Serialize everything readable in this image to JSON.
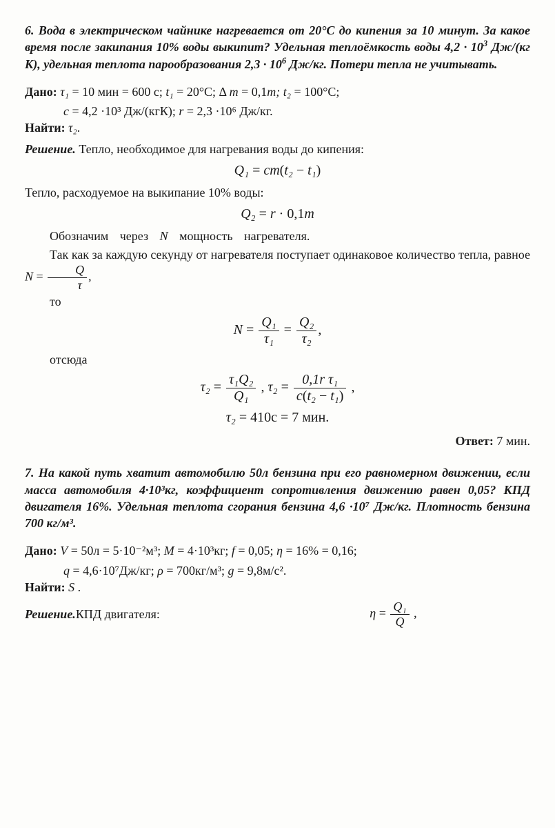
{
  "problem6": {
    "title_a": "6. Вода в электрическом чайнике нагревается от 20°С до кипения за 10 минут. За какое время после закипания 10% воды выкипит? Удельная теплоёмкость воды ",
    "title_math1_base": "4,2 · 10",
    "title_math1_exp": "3",
    "title_b": " Дж/(кг К), удельная теплота парообразования ",
    "title_math2_base": "2,3 · 10",
    "title_math2_exp": "6",
    "title_c": " Дж/кг. Потери тепла не учитывать.",
    "given_label": "Дано: ",
    "given_line1_html": "τ₁",
    "given_line1_a": " = 10 мин = 600 c;  ",
    "given_t1_var": "t₁",
    "given_t1_val": " = 20°C;   Δ",
    "given_dm_var": "m",
    "given_dm_val": " = 0,1",
    "given_dm_m": "m;   ",
    "given_t2_var": "t₂",
    "given_t2_val": " = 100°C;",
    "given_line2_c": "с",
    "given_line2_cval": " = 4,2 ·10³ Дж/(кгК); ",
    "given_line2_r": "r",
    "given_line2_rval": " = 2,3 ·10⁶ Дж/кг.",
    "find_label": "Найти: ",
    "find_var": "τ₂",
    "find_dot": ".",
    "sol_label": "Решение.",
    "sol_text1": " Тепло, необходимое для нагревания воды до кипения:",
    "eq1_q": "Q₁",
    "eq1_eq": " = ",
    "eq1_cm": "cm",
    "eq1_lp": "(",
    "eq1_t2": "t₂",
    "eq1_min": " − ",
    "eq1_t1": "t₁",
    "eq1_rp": ")",
    "sol_text2": "Тепло, расходуемое на выкипание 10% воды:",
    "eq2_q": "Q₂",
    "eq2_rhs": " = ",
    "eq2_r": "r",
    "eq2_rest": " · 0,1",
    "eq2_m": "m",
    "sol_text3a": "Обозначим через ",
    "sol_text3_N": "N",
    "sol_text3b": " мощность нагревателя.",
    "sol_text4": "Так как за каждую секунду от нагревателя поступает одинаковое количество тепла,   равное   ",
    "eq3_N": "N",
    "eq3_eq": " = ",
    "eq3_numQ": "Q",
    "eq3_dent": "τ",
    "eq3_comma": ",",
    "sol_to": "то",
    "eq4_N": "N",
    "eq4_eq1": " = ",
    "eq4_num1": "Q₁",
    "eq4_den1": "τ₁",
    "eq4_eq2": " = ",
    "eq4_num2": "Q₂",
    "eq4_den2": "τ₂",
    "eq4_comma": ",",
    "sol_ots": "отсюда",
    "eq5_t2": "τ₂",
    "eq5_eq": " = ",
    "eq5_num": "τ₁Q₂",
    "eq5_den": "Q₁",
    "eq5_sep": " ,   ",
    "eq5_t2b": "τ₂",
    "eq5_eqb": " = ",
    "eq5_num2_a": "0,1",
    "eq5_num2_r": "r",
    "eq5_num2_t": " τ₁",
    "eq5_den2_c": "c",
    "eq5_den2_lp": "(",
    "eq5_den2_t2": "t₂",
    "eq5_den2_min": " − ",
    "eq5_den2_t1": "t₁",
    "eq5_den2_rp": ")",
    "eq5_comma": " ,",
    "eq6_t2": "τ₂",
    "eq6_rest": " = 410с = 7 мин.",
    "ans_label": "Ответ:",
    "ans_val": " 7 мин."
  },
  "problem7": {
    "title": "7.  На какой путь хватит автомобилю 50л бензина при его равномерном движении, если масса автомобиля 4·10³кг, коэффициент сопротивления движению равен 0,05? КПД двигателя 16%. Удельная теплота сгорания бензина 4,6 ·10⁷ Дж/кг. Плотность бензина 700 кг/м³.",
    "given_label": "Дано: ",
    "g_V": "V",
    "g_V_val": " = 50л = 5·10⁻²м³;   ",
    "g_M": "M",
    "g_M_val": " = 4·10³кг;   ",
    "g_f": "f",
    "g_f_val": " = 0,05;   ",
    "g_eta": "η",
    "g_eta_val": " = 16% = 0,16;",
    "g_q": "q",
    "g_q_val": " = 4,6·10⁷Дж/кг;   ",
    "g_rho": "ρ",
    "g_rho_val": " = 700кг/м³;   ",
    "g_g": "g",
    "g_g_val": " = 9,8м/с².",
    "find_label": "Найти: ",
    "find_S": "S",
    "find_dot": " .",
    "sol_label": "Решение.",
    "sol_text": "   КПД двигателя:",
    "eq_eta": "η",
    "eq_eq": " = ",
    "eq_num": "Q₁",
    "eq_den": "Q",
    "eq_comma": " ,"
  }
}
